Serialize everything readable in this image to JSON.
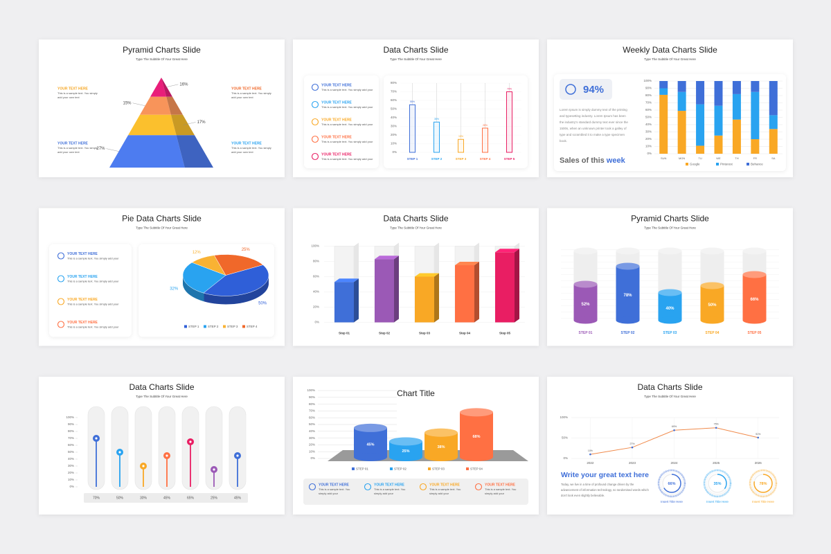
{
  "chart_data": [
    {
      "type": "pyramid",
      "title": "Pyramid Charts Slide",
      "subtitle": "Type The Subtitle Of Your Great Here",
      "values": [
        16,
        15,
        17,
        27
      ],
      "value_labels": [
        "16%",
        "15%",
        "17%",
        "27%"
      ],
      "colors": [
        "#e91e7a",
        "#f8945a",
        "#fbc02d",
        "#4d7cf0"
      ],
      "items": [
        {
          "heading": "YOUR TEXT HERE",
          "body": "This is a sample text. You simply add your own text",
          "color": "#f5a623"
        },
        {
          "heading": "YOUR TEXT HERE",
          "body": "This is a sample text. You simply add your own text",
          "color": "#f0682a"
        },
        {
          "heading": "YOUR TEXT HERE",
          "body": "This is a sample text. You simply add your own text",
          "color": "#3f6fd8"
        },
        {
          "heading": "YOUR TEXT HERE",
          "body": "This is a sample text. You simply add your own text",
          "color": "#29a3f0"
        }
      ]
    },
    {
      "type": "bar",
      "title": "Data Charts Slide",
      "subtitle": "Type The Subtitle Of Your Great Here",
      "categories": [
        "STEP 1",
        "STEP 2",
        "STEP 3",
        "STEP 4",
        "STEP 5"
      ],
      "values": [
        55,
        35,
        15,
        28,
        70
      ],
      "value_labels": [
        "55%",
        "35%",
        "15%",
        "28%",
        "70%"
      ],
      "colors": [
        "#3f6fd8",
        "#29a3f0",
        "#f9a825",
        "#ff7043",
        "#e91e63"
      ],
      "ylim": [
        0,
        80
      ],
      "yticks": [
        {
          "value": 0,
          "label": "0%"
        },
        {
          "value": 10,
          "label": "10%"
        },
        {
          "value": 20,
          "label": "20%"
        },
        {
          "value": 30,
          "label": "30%"
        },
        {
          "value": 40,
          "label": "40%"
        },
        {
          "value": 50,
          "label": "50%"
        },
        {
          "value": 60,
          "label": "60%"
        },
        {
          "value": 70,
          "label": "70%"
        },
        {
          "value": 80,
          "label": "80%"
        }
      ],
      "items": [
        {
          "heading": "YOUR TEXT HERE",
          "body": "This is a sample text. You simply add your",
          "color": "#3f6fd8"
        },
        {
          "heading": "YOUR TEXT HERE",
          "body": "This is a sample text. You simply add your",
          "color": "#29a3f0"
        },
        {
          "heading": "YOUR TEXT HERE",
          "body": "This is a sample text. You simply add your",
          "color": "#f9a825"
        },
        {
          "heading": "YOUR TEXT HERE",
          "body": "This is a sample text. You simply add your",
          "color": "#ff7043"
        },
        {
          "heading": "YOUR TEXT HERE",
          "body": "This is a sample text. You simply add your",
          "color": "#e91e63"
        }
      ]
    },
    {
      "type": "stacked",
      "title": "Weekly Data Charts Slide",
      "subtitle": "Type The Subtitle Of Your Great Here",
      "kpi": "94%",
      "text": "Lorem Ipsum is simply dummy text of the printing and typesetting industry. Lorem Ipsum has been the industry's standard dummy text ever since the 1500s, when an unknown printer took a galley of type and scrambled it to make a type specimen book.",
      "headline": "Sales of this",
      "highlight": "week",
      "categories": [
        "SUN",
        "MON",
        "TU",
        "WE",
        "TH",
        "FR",
        "SA"
      ],
      "series": [
        {
          "name": "Google",
          "color": "#f9a825",
          "values": [
            81,
            59,
            11,
            25,
            47,
            20,
            34
          ]
        },
        {
          "name": "Pinterest",
          "color": "#29a3f0",
          "values": [
            9,
            26,
            57,
            41,
            35,
            65,
            19
          ]
        },
        {
          "name": "Behance",
          "color": "#3f6fd8",
          "values": [
            10,
            15,
            32,
            34,
            18,
            15,
            47
          ]
        }
      ],
      "ylim": [
        0,
        100
      ],
      "yticks": [
        {
          "value": 0,
          "label": "0%"
        },
        {
          "value": 10,
          "label": "10%"
        },
        {
          "value": 20,
          "label": "20%"
        },
        {
          "value": 30,
          "label": "30%"
        },
        {
          "value": 40,
          "label": "40%"
        },
        {
          "value": 50,
          "label": "50%"
        },
        {
          "value": 60,
          "label": "60%"
        },
        {
          "value": 70,
          "label": "70%"
        },
        {
          "value": 80,
          "label": "80%"
        },
        {
          "value": 90,
          "label": "90%"
        },
        {
          "value": 100,
          "label": "100%"
        }
      ]
    },
    {
      "type": "pie3d",
      "title": "Pie Data Charts Slide",
      "subtitle": "Type The Subtitle Of Your Great Here",
      "categories": [
        "STEP 1",
        "STEP 2",
        "STEP 3",
        "STEP 4"
      ],
      "values": [
        50,
        32,
        12,
        25
      ],
      "value_labels": [
        "50%",
        "32%",
        "12%",
        "25%"
      ],
      "colors": [
        "#2f5fd8",
        "#29a3f0",
        "#f9b233",
        "#f0682a"
      ],
      "items": [
        {
          "heading": "YOUR TEXT HERE",
          "body": "This is a sample text. You simply add your",
          "color": "#3f6fd8"
        },
        {
          "heading": "YOUR TEXT HERE",
          "body": "This is a sample text. You simply add your",
          "color": "#29a3f0"
        },
        {
          "heading": "YOUR TEXT HERE",
          "body": "This is a sample text. You simply add your",
          "color": "#f9a825"
        },
        {
          "heading": "YOUR TEXT HERE",
          "body": "This is a sample text. You simply add your",
          "color": "#ff7043"
        }
      ]
    },
    {
      "type": "bar3d",
      "title": "Data Charts Slide",
      "subtitle": "Type The Subtitle Of Your Great Here",
      "categories": [
        "Step 01",
        "Step 02",
        "Step 03",
        "Step 04",
        "Step 05"
      ],
      "values": [
        53,
        83,
        60,
        75,
        92
      ],
      "colors": [
        "#3f6fd8",
        "#9b59b6",
        "#f9a825",
        "#ff7043",
        "#e91e63"
      ],
      "ylim": [
        0,
        100
      ],
      "yticks": [
        {
          "value": 0,
          "label": "0%"
        },
        {
          "value": 20,
          "label": "20%"
        },
        {
          "value": 40,
          "label": "40%"
        },
        {
          "value": 60,
          "label": "60%"
        },
        {
          "value": 80,
          "label": "80%"
        },
        {
          "value": 100,
          "label": "100%"
        }
      ]
    },
    {
      "type": "cylinder",
      "title": "Pyramid Charts Slide",
      "subtitle": "Type The Subtitle Of Your Great Here",
      "categories": [
        "STEP 01",
        "STEP 02",
        "STEP 03",
        "STEP 04",
        "STEP 05"
      ],
      "values": [
        52,
        78,
        40,
        50,
        66
      ],
      "value_labels": [
        "52%",
        "78%",
        "40%",
        "50%",
        "66%"
      ],
      "colors": [
        "#9b59b6",
        "#3f6fd8",
        "#29a3f0",
        "#f9a825",
        "#ff7043"
      ],
      "ylim": [
        0,
        100
      ]
    },
    {
      "type": "lollipop",
      "title": "Data Charts Slide",
      "subtitle": "Type The Subtitle Of Your Great Here",
      "values": [
        70,
        50,
        30,
        45,
        65,
        25,
        45
      ],
      "value_labels": [
        "70%",
        "50%",
        "30%",
        "45%",
        "65%",
        "25%",
        "45%"
      ],
      "colors": [
        "#3f6fd8",
        "#29a3f0",
        "#f9a825",
        "#ff7043",
        "#e91e63",
        "#9b59b6",
        "#3f6fd8"
      ],
      "ylim": [
        0,
        100
      ],
      "yticks": [
        {
          "value": 0,
          "label": "0%"
        },
        {
          "value": 10,
          "label": "10%"
        },
        {
          "value": 20,
          "label": "20%"
        },
        {
          "value": 30,
          "label": "30%"
        },
        {
          "value": 40,
          "label": "40%"
        },
        {
          "value": 50,
          "label": "50%"
        },
        {
          "value": 60,
          "label": "60%"
        },
        {
          "value": 70,
          "label": "70%"
        },
        {
          "value": 80,
          "label": "80%"
        },
        {
          "value": 90,
          "label": "90%"
        },
        {
          "value": 100,
          "label": "100%"
        }
      ]
    },
    {
      "type": "cylinder3d",
      "title": "Chart Title",
      "categories": [
        "STEP 01",
        "STEP 02",
        "STEP 03",
        "STEP 04"
      ],
      "values": [
        45,
        25,
        38,
        68
      ],
      "value_labels": [
        "45%",
        "25%",
        "38%",
        "68%"
      ],
      "colors": [
        "#3f6fd8",
        "#29a3f0",
        "#f9a825",
        "#ff7043"
      ],
      "ylim": [
        0,
        100
      ],
      "yticks": [
        {
          "value": 0,
          "label": "0%"
        },
        {
          "value": 10,
          "label": "10%"
        },
        {
          "value": 20,
          "label": "20%"
        },
        {
          "value": 30,
          "label": "30%"
        },
        {
          "value": 40,
          "label": "40%"
        },
        {
          "value": 50,
          "label": "50%"
        },
        {
          "value": 60,
          "label": "60%"
        },
        {
          "value": 70,
          "label": "70%"
        },
        {
          "value": 80,
          "label": "80%"
        },
        {
          "value": 90,
          "label": "90%"
        },
        {
          "value": 100,
          "label": "100%"
        }
      ],
      "items": [
        {
          "heading": "YOUR TEXT HERE",
          "body": "This is a sample text. You simply add your",
          "color": "#3f6fd8"
        },
        {
          "heading": "YOUR TEXT HERE",
          "body": "This is a sample text. You simply add your",
          "color": "#29a3f0"
        },
        {
          "heading": "YOUR TEXT HERE",
          "body": "This is a sample text. You simply add your",
          "color": "#f9a825"
        },
        {
          "heading": "YOUR TEXT HERE",
          "body": "This is a sample text. You simply add your",
          "color": "#ff7043"
        }
      ]
    },
    {
      "type": "line",
      "title": "Data Charts Slide",
      "subtitle": "Type The Subtitle Of Your Great Here",
      "x": [
        2022,
        2023,
        2024,
        2025,
        2026
      ],
      "values": [
        10,
        27,
        69,
        75,
        51
      ],
      "value_labels": [
        "10%",
        "27%",
        "69%",
        "75%",
        "51%"
      ],
      "color": "#f08a4b",
      "xlim": [
        2021.3,
        2026.5
      ],
      "ylim": [
        0,
        100
      ],
      "yticks": [
        {
          "value": 0,
          "label": "0%"
        },
        {
          "value": 50,
          "label": "50%"
        },
        {
          "value": 100,
          "label": "100%"
        }
      ],
      "headline": "Write your great text here",
      "text": "Today, we live in a time of profound change driven by the advancement of information technology, so randomised words which don't look even slightly believable.",
      "gauges": {
        "values": [
          66,
          35,
          78
        ],
        "value_labels": [
          "66%",
          "35%",
          "78%"
        ],
        "labels": [
          "Insert Title Here",
          "Insert Title Here",
          "Insert Title Here"
        ],
        "colors": [
          "#3f6fd8",
          "#29a3f0",
          "#f9a825"
        ],
        "lim": [
          0,
          100
        ]
      }
    }
  ]
}
